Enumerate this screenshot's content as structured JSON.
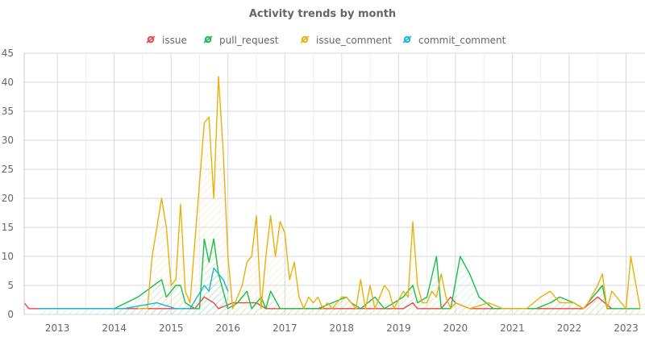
{
  "chart_data": {
    "type": "line",
    "title": "Activity trends by month",
    "xlabel": "",
    "ylabel": "",
    "x_axis": {
      "type": "time",
      "range": [
        "2012-06",
        "2023-05"
      ],
      "ticks": [
        "2013",
        "2014",
        "2015",
        "2016",
        "2017",
        "2018",
        "2019",
        "2020",
        "2021",
        "2022",
        "2023"
      ]
    },
    "ylim": [
      0,
      45
    ],
    "y_ticks": [
      0,
      5,
      10,
      15,
      20,
      25,
      30,
      35,
      40,
      45
    ],
    "grid": true,
    "legend_position": "top",
    "series": [
      {
        "name": "issue",
        "color": "#e8474c",
        "area": false,
        "points": [
          [
            "2012-06",
            2
          ],
          [
            "2012-07",
            1
          ],
          [
            "2012-09",
            1
          ],
          [
            "2013-06",
            1
          ],
          [
            "2014-03",
            1
          ],
          [
            "2014-09",
            1
          ],
          [
            "2015-01",
            1
          ],
          [
            "2015-06",
            1
          ],
          [
            "2015-08",
            3
          ],
          [
            "2015-10",
            2
          ],
          [
            "2015-11",
            1
          ],
          [
            "2016-02",
            2
          ],
          [
            "2016-05",
            2
          ],
          [
            "2016-07",
            2
          ],
          [
            "2016-09",
            1
          ],
          [
            "2017-01",
            1
          ],
          [
            "2017-06",
            1
          ],
          [
            "2017-10",
            1
          ],
          [
            "2018-04",
            1
          ],
          [
            "2018-09",
            1
          ],
          [
            "2019-02",
            1
          ],
          [
            "2019-04",
            2
          ],
          [
            "2019-05",
            1
          ],
          [
            "2019-08",
            1
          ],
          [
            "2019-10",
            1
          ],
          [
            "2019-12",
            3
          ],
          [
            "2020-01",
            2
          ],
          [
            "2020-04",
            1
          ],
          [
            "2020-09",
            1
          ],
          [
            "2021-02",
            1
          ],
          [
            "2021-07",
            1
          ],
          [
            "2021-12",
            1
          ],
          [
            "2022-04",
            1
          ],
          [
            "2022-07",
            3
          ],
          [
            "2022-10",
            1
          ]
        ]
      },
      {
        "name": "pull_request",
        "color": "#1bbc4e",
        "area": true,
        "points": [
          [
            "2014-01",
            1
          ],
          [
            "2014-06",
            3
          ],
          [
            "2014-11",
            6
          ],
          [
            "2014-12",
            3
          ],
          [
            "2015-02",
            5
          ],
          [
            "2015-03",
            5
          ],
          [
            "2015-04",
            2
          ],
          [
            "2015-06",
            1
          ],
          [
            "2015-07",
            1
          ],
          [
            "2015-08",
            13
          ],
          [
            "2015-09",
            9
          ],
          [
            "2015-10",
            13
          ],
          [
            "2015-11",
            7
          ],
          [
            "2016-01",
            1
          ],
          [
            "2016-03",
            2
          ],
          [
            "2016-05",
            4
          ],
          [
            "2016-06",
            1
          ],
          [
            "2016-08",
            3
          ],
          [
            "2016-09",
            1
          ],
          [
            "2016-10",
            4
          ],
          [
            "2016-12",
            1
          ],
          [
            "2017-01",
            1
          ],
          [
            "2017-04",
            1
          ],
          [
            "2017-08",
            1
          ],
          [
            "2018-02",
            3
          ],
          [
            "2018-03",
            2
          ],
          [
            "2018-05",
            1
          ],
          [
            "2018-08",
            3
          ],
          [
            "2018-10",
            1
          ],
          [
            "2018-12",
            2
          ],
          [
            "2019-02",
            3
          ],
          [
            "2019-04",
            5
          ],
          [
            "2019-05",
            2
          ],
          [
            "2019-07",
            3
          ],
          [
            "2019-09",
            10
          ],
          [
            "2019-10",
            1
          ],
          [
            "2019-12",
            1
          ],
          [
            "2020-02",
            10
          ],
          [
            "2020-04",
            7
          ],
          [
            "2020-06",
            3
          ],
          [
            "2020-09",
            1
          ],
          [
            "2021-03",
            1
          ],
          [
            "2021-06",
            1
          ],
          [
            "2021-09",
            2
          ],
          [
            "2021-11",
            3
          ],
          [
            "2022-02",
            2
          ],
          [
            "2022-04",
            1
          ],
          [
            "2022-06",
            3
          ],
          [
            "2022-08",
            5
          ],
          [
            "2022-09",
            1
          ],
          [
            "2023-01",
            1
          ],
          [
            "2023-04",
            1
          ]
        ]
      },
      {
        "name": "issue_comment",
        "color": "#e8b10e",
        "area": true,
        "points": [
          [
            "2014-06",
            1
          ],
          [
            "2014-08",
            1
          ],
          [
            "2014-09",
            10
          ],
          [
            "2014-11",
            20
          ],
          [
            "2014-12",
            15
          ],
          [
            "2015-01",
            5
          ],
          [
            "2015-02",
            6
          ],
          [
            "2015-03",
            19
          ],
          [
            "2015-04",
            4
          ],
          [
            "2015-05",
            2
          ],
          [
            "2015-08",
            33
          ],
          [
            "2015-09",
            34
          ],
          [
            "2015-10",
            20
          ],
          [
            "2015-11",
            41
          ],
          [
            "2015-12",
            28
          ],
          [
            "2016-01",
            10
          ],
          [
            "2016-02",
            1
          ],
          [
            "2016-04",
            5
          ],
          [
            "2016-05",
            9
          ],
          [
            "2016-06",
            10
          ],
          [
            "2016-07",
            17
          ],
          [
            "2016-08",
            1
          ],
          [
            "2016-09",
            10
          ],
          [
            "2016-10",
            17
          ],
          [
            "2016-11",
            10
          ],
          [
            "2016-12",
            16
          ],
          [
            "2017-01",
            14
          ],
          [
            "2017-02",
            6
          ],
          [
            "2017-03",
            9
          ],
          [
            "2017-04",
            3
          ],
          [
            "2017-05",
            1
          ],
          [
            "2017-06",
            3
          ],
          [
            "2017-07",
            2
          ],
          [
            "2017-08",
            3
          ],
          [
            "2017-09",
            1
          ],
          [
            "2017-10",
            2
          ],
          [
            "2017-11",
            1
          ],
          [
            "2018-01",
            3
          ],
          [
            "2018-02",
            3
          ],
          [
            "2018-03",
            2
          ],
          [
            "2018-04",
            1
          ],
          [
            "2018-05",
            6
          ],
          [
            "2018-06",
            1
          ],
          [
            "2018-07",
            5
          ],
          [
            "2018-08",
            1
          ],
          [
            "2018-10",
            5
          ],
          [
            "2018-11",
            4
          ],
          [
            "2018-12",
            1
          ],
          [
            "2019-02",
            4
          ],
          [
            "2019-03",
            3
          ],
          [
            "2019-04",
            16
          ],
          [
            "2019-05",
            5
          ],
          [
            "2019-06",
            2
          ],
          [
            "2019-07",
            2
          ],
          [
            "2019-08",
            4
          ],
          [
            "2019-09",
            3
          ],
          [
            "2019-10",
            7
          ],
          [
            "2019-11",
            3
          ],
          [
            "2019-12",
            1
          ],
          [
            "2020-01",
            2
          ],
          [
            "2020-04",
            1
          ],
          [
            "2020-08",
            2
          ],
          [
            "2020-11",
            1
          ],
          [
            "2021-04",
            1
          ],
          [
            "2021-07",
            3
          ],
          [
            "2021-09",
            4
          ],
          [
            "2021-11",
            2
          ],
          [
            "2022-02",
            2
          ],
          [
            "2022-04",
            1
          ],
          [
            "2022-05",
            2
          ],
          [
            "2022-07",
            5
          ],
          [
            "2022-08",
            7
          ],
          [
            "2022-09",
            1
          ],
          [
            "2022-10",
            4
          ],
          [
            "2023-01",
            1
          ],
          [
            "2023-02",
            10
          ],
          [
            "2023-04",
            1
          ]
        ]
      },
      {
        "name": "commit_comment",
        "color": "#16b6d6",
        "area": true,
        "points": [
          [
            "2012-09",
            1
          ],
          [
            "2013-06",
            1
          ],
          [
            "2014-03",
            1
          ],
          [
            "2014-10",
            2
          ],
          [
            "2015-02",
            1
          ],
          [
            "2015-05",
            1
          ],
          [
            "2015-08",
            5
          ],
          [
            "2015-09",
            4
          ],
          [
            "2015-10",
            8
          ],
          [
            "2015-11",
            7
          ],
          [
            "2015-12",
            6
          ],
          [
            "2016-01",
            4
          ]
        ]
      }
    ]
  }
}
